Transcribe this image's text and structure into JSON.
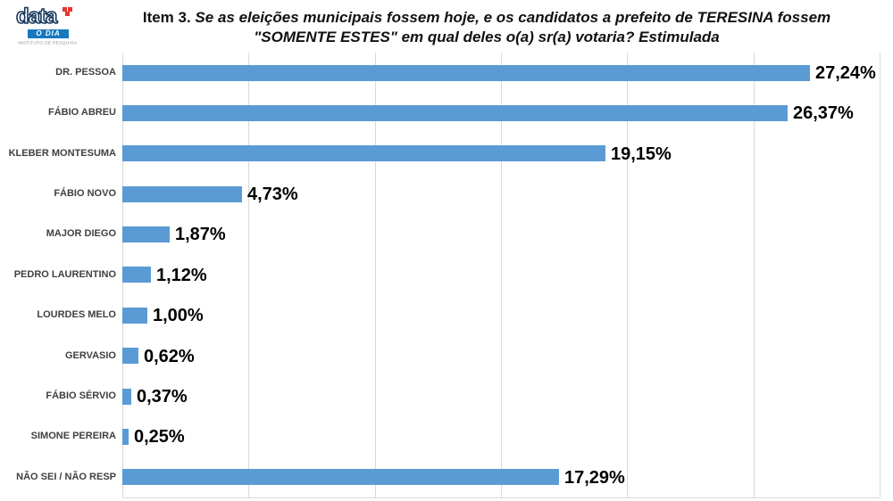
{
  "logo": {
    "brand": "data",
    "newspaper": "O DIA",
    "subtitle": "INSTITUTO DE PESQUISA",
    "brand_color": "#16365c",
    "bar_color": "#1778be",
    "flag_color": "#e8372c"
  },
  "title": {
    "prefix": "Item 3.",
    "line1_rest": " Se as eleições municipais fossem hoje, e os candidatos a prefeito de TERESINA fossem",
    "line2": "\"SOMENTE ESTES\" em qual deles o(a) sr(a) votaria? Estimulada"
  },
  "chart_data": {
    "type": "bar",
    "orientation": "horizontal",
    "categories": [
      "DR. PESSOA",
      "FÁBIO ABREU",
      "KLEBER MONTESUMA",
      "FÁBIO NOVO",
      "MAJOR DIEGO",
      "PEDRO LAURENTINO",
      "LOURDES MELO",
      "GERVASIO",
      "FÁBIO SÉRVIO",
      "SIMONE PEREIRA",
      "NÃO SEI / NÃO RESP"
    ],
    "values": [
      27.24,
      26.37,
      19.15,
      4.73,
      1.87,
      1.12,
      1.0,
      0.62,
      0.37,
      0.25,
      17.29
    ],
    "value_labels": [
      "27,24%",
      "26,37%",
      "19,15%",
      "4,73%",
      "1,87%",
      "1,12%",
      "1,00%",
      "0,62%",
      "0,37%",
      "0,25%",
      "17,29%"
    ],
    "xlim": [
      0,
      30
    ],
    "gridline_step": 5,
    "grid": true,
    "legend": "none",
    "bar_color": "#5b9bd5",
    "gridline_color": "#d9d9d9",
    "title": "Item 3. Se as eleições municipais fossem hoje, e os candidatos a prefeito de TERESINA fossem \"SOMENTE ESTES\" em qual deles o(a) sr(a) votaria? Estimulada"
  }
}
